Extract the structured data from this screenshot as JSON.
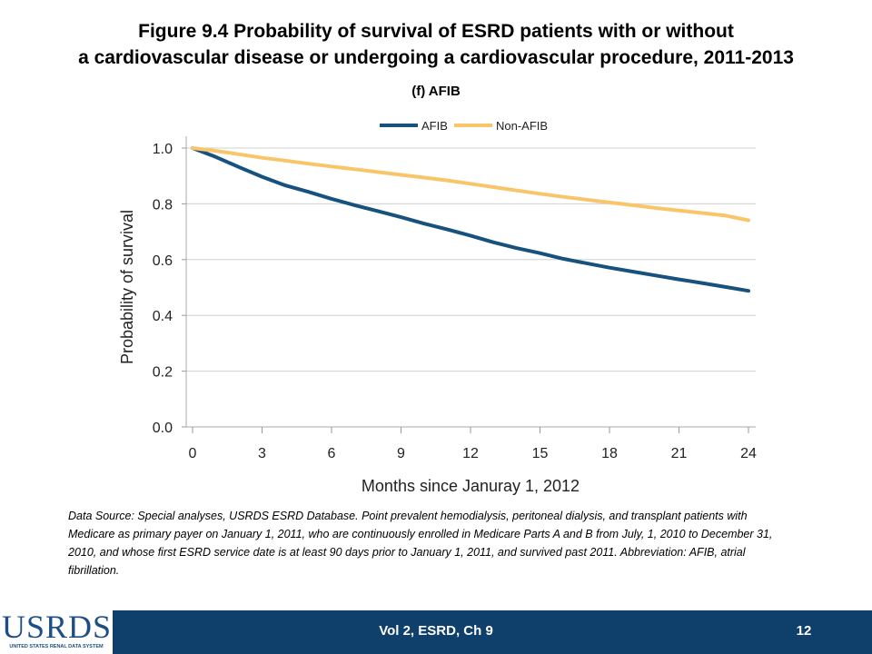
{
  "slide": {
    "title_line1": "Figure 9.4 Probability of survival of ESRD patients with or without",
    "title_line2": "a cardiovascular disease or undergoing a cardiovascular procedure, 2011-2013",
    "subtitle": "(f) AFIB",
    "data_source": "Data Source: Special analyses, USRDS ESRD Database. Point prevalent hemodialysis, peritoneal dialysis, and transplant patients with Medicare as primary payer on January 1, 2011, who are continuously enrolled in Medicare Parts A and B from July, 1, 2010 to December 31, 2010, and whose first ESRD service date is at least 90 days prior to January 1, 2011, and survived past 2011. Abbreviation: AFIB, atrial fibrillation.",
    "footer": "Vol 2, ESRD, Ch 9",
    "page_number": "12",
    "logo_text": "USRDS",
    "logo_subtext": "UNITED STATES RENAL DATA SYSTEM",
    "footer_color": "#0f3f6b"
  },
  "chart_data": {
    "type": "line",
    "xlabel": "Months since Januray 1, 2012",
    "ylabel": "Probability of survival",
    "xlim": [
      0,
      24
    ],
    "ylim": [
      0,
      1.0
    ],
    "x_ticks": [
      0,
      3,
      6,
      9,
      12,
      15,
      18,
      21,
      24
    ],
    "x_tick_labels": [
      "0",
      "3",
      "6",
      "9",
      "12",
      "15",
      "18",
      "21",
      "24"
    ],
    "y_ticks": [
      0,
      0.2,
      0.4,
      0.6,
      0.8,
      1.0
    ],
    "y_tick_labels": [
      "0.0",
      "0.2",
      "0.4",
      "0.6",
      "0.8",
      "1.0"
    ],
    "grid": "horizontal",
    "legend_position": "top",
    "series": [
      {
        "name": "AFIB",
        "color": "#17527f",
        "x": [
          0,
          1,
          2,
          3,
          4,
          5,
          6,
          7,
          8,
          9,
          10,
          11,
          12,
          13,
          14,
          15,
          16,
          17,
          18,
          19,
          20,
          21,
          22,
          23,
          24
        ],
        "values": [
          1.0,
          0.968,
          0.932,
          0.897,
          0.866,
          0.843,
          0.818,
          0.795,
          0.774,
          0.752,
          0.729,
          0.708,
          0.686,
          0.662,
          0.641,
          0.623,
          0.603,
          0.587,
          0.571,
          0.557,
          0.543,
          0.529,
          0.516,
          0.502,
          0.488
        ]
      },
      {
        "name": "Non-AFIB",
        "color": "#f8c56a",
        "x": [
          0,
          1,
          2,
          3,
          4,
          5,
          6,
          7,
          8,
          9,
          10,
          11,
          12,
          13,
          14,
          15,
          16,
          17,
          18,
          19,
          20,
          21,
          22,
          23,
          24
        ],
        "values": [
          1.0,
          0.99,
          0.978,
          0.965,
          0.955,
          0.944,
          0.934,
          0.924,
          0.914,
          0.904,
          0.894,
          0.884,
          0.872,
          0.86,
          0.848,
          0.836,
          0.825,
          0.815,
          0.805,
          0.795,
          0.785,
          0.776,
          0.767,
          0.758,
          0.741
        ]
      }
    ]
  }
}
